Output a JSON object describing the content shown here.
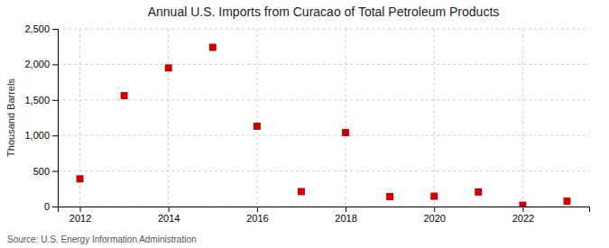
{
  "chart_data": {
    "type": "scatter",
    "title": "Annual U.S. Imports from Curacao of Total Petroleum Products",
    "y_label": "Thousand Barrels",
    "annotations": [
      "Source: U.S. Energy Information Administration"
    ],
    "x": [
      2012,
      2013,
      2014,
      2015,
      2016,
      2017,
      2018,
      2019,
      2020,
      2021,
      2022,
      2023
    ],
    "values": [
      390,
      1560,
      1950,
      2240,
      1130,
      210,
      1040,
      140,
      145,
      205,
      18,
      75
    ],
    "color": "#cc0000",
    "marker": "square",
    "xlim": [
      2011.5,
      2023.5
    ],
    "xticks": [
      2012,
      2014,
      2016,
      2018,
      2020,
      2022
    ],
    "ylim": [
      0,
      2500
    ],
    "yticks": [
      0,
      500,
      {
        "value": 1000,
        "label": "1,000"
      },
      {
        "value": 1500,
        "label": "1,500"
      },
      {
        "value": 2000,
        "label": "2,000"
      },
      {
        "value": 2500,
        "label": "2,500"
      }
    ],
    "grid": true
  }
}
